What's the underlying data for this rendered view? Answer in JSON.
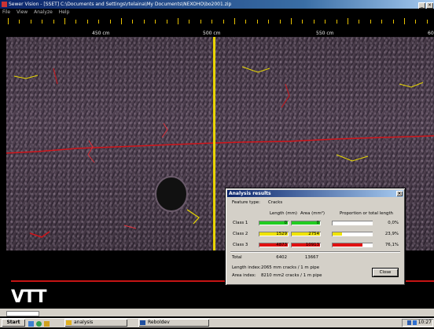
{
  "window": {
    "title": "Sewer Vision - [SSET] C:\\Documents and Settings\\rtelaina\\My Documents\\NEXOHO\\bo2001.zip",
    "buttons": [
      "_",
      "×"
    ]
  },
  "menu": [
    "File",
    "View",
    "Analyze",
    "Help"
  ],
  "ruler": {
    "labels": [
      "450 cm",
      "500 cm",
      "550 cm",
      "60"
    ]
  },
  "logo": "VTT",
  "dialog": {
    "title": "Analysis results",
    "close_glyph": "×",
    "feature_type_label": "Feature type:",
    "feature_type_value": "Cracks",
    "headers": {
      "length": "Length (mm)",
      "area": "Area (mm²)",
      "proportion": "Proportion or total length"
    },
    "classes": [
      {
        "name": "Class 1",
        "length": "0",
        "area": "0",
        "proportion": "0,0%",
        "proportion_fraction": 0.0,
        "color": "#22cc22"
      },
      {
        "name": "Class 2",
        "length": "1529",
        "area": "2754",
        "proportion": "23,9%",
        "proportion_fraction": 0.239,
        "color": "#f0e400"
      },
      {
        "name": "Class 3",
        "length": "4873",
        "area": "10913",
        "proportion": "76,1%",
        "proportion_fraction": 0.761,
        "color": "#e01010"
      }
    ],
    "total_label": "Total",
    "total_length": "6402",
    "total_area": "13667",
    "length_index_label": "Length index:",
    "length_index_value": "2065 mm cracks / 1 m pipe",
    "area_index_label": "Area index:",
    "area_index_value": "8210 mm2 cracks / 1 m pipe",
    "close_button": "Close"
  },
  "taskbar": {
    "start": "Start",
    "items": [
      "analysis",
      "Reboldev"
    ],
    "clock": "10:27"
  }
}
